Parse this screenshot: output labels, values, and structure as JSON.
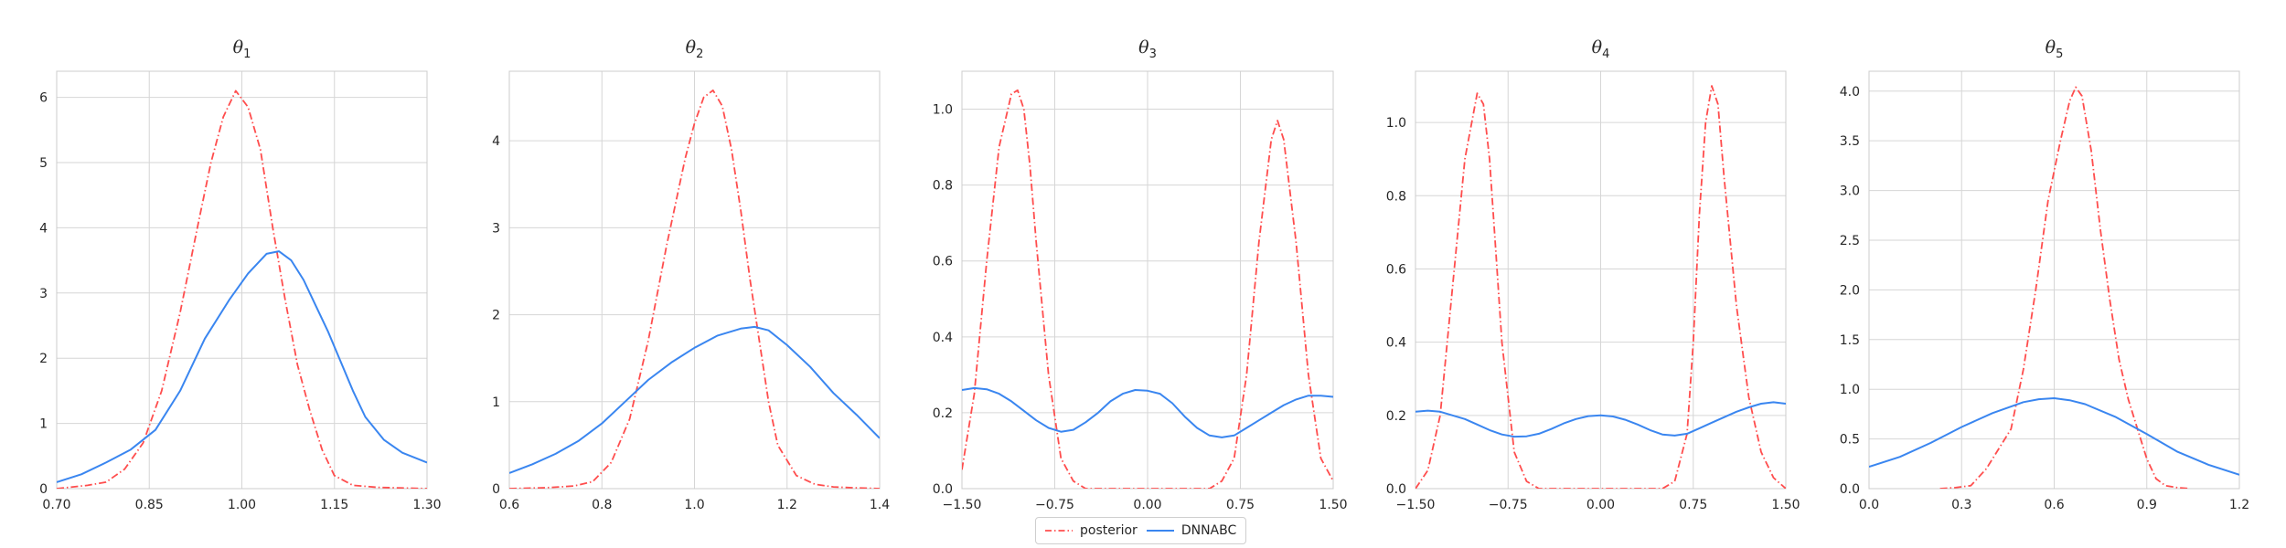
{
  "chart_data": [
    {
      "type": "line",
      "title": "θ1",
      "title_symbol": "θ",
      "title_sub": "1",
      "xlim": [
        0.7,
        1.3
      ],
      "ylim": [
        0,
        6.4
      ],
      "xticks": [
        "0.70",
        "0.85",
        "1.00",
        "1.15",
        "1.30"
      ],
      "yticks": [
        "0",
        "1",
        "2",
        "3",
        "4",
        "5",
        "6"
      ],
      "grid": true,
      "series": [
        {
          "name": "posterior",
          "style": "dashdot",
          "color": "#ff4d4d",
          "x": [
            0.7,
            0.75,
            0.78,
            0.81,
            0.84,
            0.87,
            0.9,
            0.93,
            0.95,
            0.97,
            0.99,
            1.01,
            1.03,
            1.05,
            1.07,
            1.09,
            1.11,
            1.13,
            1.15,
            1.18,
            1.22,
            1.26,
            1.3
          ],
          "y": [
            0.0,
            0.05,
            0.1,
            0.3,
            0.7,
            1.5,
            2.7,
            4.1,
            5.0,
            5.7,
            6.1,
            5.85,
            5.2,
            4.0,
            2.9,
            1.9,
            1.2,
            0.6,
            0.2,
            0.05,
            0.02,
            0.01,
            0.0
          ]
        },
        {
          "name": "DNNABC",
          "style": "solid",
          "color": "#3a86f0",
          "x": [
            0.7,
            0.74,
            0.78,
            0.82,
            0.86,
            0.9,
            0.94,
            0.98,
            1.01,
            1.04,
            1.06,
            1.08,
            1.1,
            1.12,
            1.14,
            1.16,
            1.18,
            1.2,
            1.23,
            1.26,
            1.3
          ],
          "y": [
            0.1,
            0.22,
            0.4,
            0.6,
            0.9,
            1.5,
            2.3,
            2.9,
            3.3,
            3.6,
            3.64,
            3.5,
            3.2,
            2.8,
            2.4,
            1.95,
            1.5,
            1.1,
            0.75,
            0.55,
            0.4
          ]
        }
      ]
    },
    {
      "type": "line",
      "title": "θ2",
      "title_symbol": "θ",
      "title_sub": "2",
      "xlim": [
        0.6,
        1.4
      ],
      "ylim": [
        0,
        4.8
      ],
      "xticks": [
        "0.6",
        "0.8",
        "1.0",
        "1.2",
        "1.4"
      ],
      "yticks": [
        "0",
        "1",
        "2",
        "3",
        "4"
      ],
      "grid": true,
      "series": [
        {
          "name": "posterior",
          "style": "dashdot",
          "color": "#ff4d4d",
          "x": [
            0.6,
            0.68,
            0.74,
            0.78,
            0.82,
            0.86,
            0.9,
            0.94,
            0.98,
            1.0,
            1.02,
            1.04,
            1.06,
            1.08,
            1.1,
            1.12,
            1.14,
            1.16,
            1.18,
            1.22,
            1.26,
            1.3,
            1.34,
            1.4
          ],
          "y": [
            0.0,
            0.01,
            0.03,
            0.08,
            0.3,
            0.8,
            1.7,
            2.8,
            3.8,
            4.2,
            4.5,
            4.58,
            4.4,
            3.9,
            3.2,
            2.4,
            1.7,
            1.0,
            0.5,
            0.15,
            0.05,
            0.02,
            0.01,
            0.0
          ]
        },
        {
          "name": "DNNABC",
          "style": "solid",
          "color": "#3a86f0",
          "x": [
            0.6,
            0.65,
            0.7,
            0.75,
            0.8,
            0.85,
            0.9,
            0.95,
            1.0,
            1.05,
            1.1,
            1.13,
            1.16,
            1.2,
            1.25,
            1.3,
            1.35,
            1.4
          ],
          "y": [
            0.18,
            0.28,
            0.4,
            0.55,
            0.75,
            1.0,
            1.25,
            1.45,
            1.62,
            1.76,
            1.84,
            1.86,
            1.82,
            1.65,
            1.4,
            1.1,
            0.85,
            0.58
          ]
        }
      ]
    },
    {
      "type": "line",
      "title": "θ3",
      "title_symbol": "θ",
      "title_sub": "3",
      "xlim": [
        -1.5,
        1.5
      ],
      "ylim": [
        0,
        1.1
      ],
      "xticks": [
        "−1.50",
        "−0.75",
        "0.00",
        "0.75",
        "1.50"
      ],
      "yticks": [
        "0.0",
        "0.2",
        "0.4",
        "0.6",
        "0.8",
        "1.0"
      ],
      "grid": true,
      "series": [
        {
          "name": "posterior",
          "style": "dashdot",
          "color": "#ff4d4d",
          "x": [
            -1.5,
            -1.4,
            -1.3,
            -1.2,
            -1.1,
            -1.05,
            -1.0,
            -0.95,
            -0.9,
            -0.8,
            -0.7,
            -0.6,
            -0.5,
            -0.3,
            0.0,
            0.3,
            0.5,
            0.6,
            0.7,
            0.8,
            0.9,
            1.0,
            1.05,
            1.1,
            1.2,
            1.3,
            1.4,
            1.5
          ],
          "y": [
            0.05,
            0.25,
            0.6,
            0.9,
            1.04,
            1.05,
            1.0,
            0.85,
            0.65,
            0.3,
            0.08,
            0.02,
            0.0,
            0.0,
            0.0,
            0.0,
            0.0,
            0.02,
            0.08,
            0.3,
            0.65,
            0.92,
            0.97,
            0.92,
            0.65,
            0.3,
            0.08,
            0.02
          ]
        },
        {
          "name": "DNNABC",
          "style": "solid",
          "color": "#3a86f0",
          "x": [
            -1.5,
            -1.4,
            -1.3,
            -1.2,
            -1.1,
            -1.0,
            -0.9,
            -0.8,
            -0.7,
            -0.6,
            -0.5,
            -0.4,
            -0.3,
            -0.2,
            -0.1,
            0.0,
            0.1,
            0.2,
            0.3,
            0.4,
            0.5,
            0.6,
            0.7,
            0.8,
            0.9,
            1.0,
            1.1,
            1.2,
            1.3,
            1.4,
            1.5
          ],
          "y": [
            0.26,
            0.265,
            0.262,
            0.25,
            0.23,
            0.205,
            0.18,
            0.16,
            0.15,
            0.155,
            0.175,
            0.2,
            0.23,
            0.25,
            0.26,
            0.258,
            0.25,
            0.225,
            0.19,
            0.16,
            0.14,
            0.135,
            0.14,
            0.16,
            0.18,
            0.2,
            0.22,
            0.235,
            0.245,
            0.245,
            0.242
          ]
        }
      ]
    },
    {
      "type": "line",
      "title": "θ4",
      "title_symbol": "θ",
      "title_sub": "4",
      "xlim": [
        -1.5,
        1.5
      ],
      "ylim": [
        0,
        1.14
      ],
      "xticks": [
        "−1.50",
        "−0.75",
        "0.00",
        "0.75",
        "1.50"
      ],
      "yticks": [
        "0.0",
        "0.2",
        "0.4",
        "0.6",
        "0.8",
        "1.0"
      ],
      "grid": true,
      "series": [
        {
          "name": "posterior",
          "style": "dashdot",
          "color": "#ff4d4d",
          "x": [
            -1.5,
            -1.4,
            -1.3,
            -1.2,
            -1.1,
            -1.0,
            -0.95,
            -0.9,
            -0.85,
            -0.8,
            -0.7,
            -0.6,
            -0.5,
            -0.3,
            0.0,
            0.3,
            0.5,
            0.6,
            0.7,
            0.75,
            0.8,
            0.85,
            0.9,
            0.95,
            1.0,
            1.1,
            1.2,
            1.3,
            1.4,
            1.5
          ],
          "y": [
            0.0,
            0.05,
            0.2,
            0.55,
            0.9,
            1.08,
            1.05,
            0.9,
            0.65,
            0.4,
            0.1,
            0.02,
            0.0,
            0.0,
            0.0,
            0.0,
            0.0,
            0.02,
            0.15,
            0.4,
            0.75,
            1.0,
            1.1,
            1.05,
            0.85,
            0.5,
            0.25,
            0.1,
            0.03,
            0.0
          ]
        },
        {
          "name": "DNNABC",
          "style": "solid",
          "color": "#3a86f0",
          "x": [
            -1.5,
            -1.4,
            -1.3,
            -1.2,
            -1.1,
            -1.0,
            -0.9,
            -0.8,
            -0.7,
            -0.6,
            -0.5,
            -0.4,
            -0.3,
            -0.2,
            -0.1,
            0.0,
            0.1,
            0.2,
            0.3,
            0.4,
            0.5,
            0.6,
            0.7,
            0.8,
            0.9,
            1.0,
            1.1,
            1.2,
            1.3,
            1.4,
            1.5
          ],
          "y": [
            0.21,
            0.213,
            0.21,
            0.2,
            0.19,
            0.175,
            0.16,
            0.148,
            0.142,
            0.143,
            0.15,
            0.163,
            0.178,
            0.19,
            0.198,
            0.2,
            0.197,
            0.188,
            0.175,
            0.16,
            0.148,
            0.145,
            0.15,
            0.165,
            0.18,
            0.195,
            0.21,
            0.222,
            0.232,
            0.236,
            0.232
          ]
        }
      ]
    },
    {
      "type": "line",
      "title": "θ5",
      "title_symbol": "θ",
      "title_sub": "5",
      "xlim": [
        0.0,
        1.2
      ],
      "ylim": [
        0,
        4.2
      ],
      "xticks": [
        "0.0",
        "0.3",
        "0.6",
        "0.9",
        "1.2"
      ],
      "yticks": [
        "0.0",
        "0.5",
        "1.0",
        "1.5",
        "2.0",
        "2.5",
        "3.0",
        "3.5",
        "4.0"
      ],
      "grid": true,
      "series": [
        {
          "name": "posterior",
          "style": "dashdot",
          "color": "#ff4d4d",
          "x": [
            0.23,
            0.28,
            0.33,
            0.38,
            0.42,
            0.46,
            0.5,
            0.54,
            0.58,
            0.62,
            0.65,
            0.67,
            0.69,
            0.72,
            0.75,
            0.78,
            0.81,
            0.84,
            0.87,
            0.9,
            0.93,
            0.96,
            1.0,
            1.04
          ],
          "y": [
            0.0,
            0.01,
            0.03,
            0.2,
            0.4,
            0.6,
            1.2,
            2.0,
            2.9,
            3.5,
            3.9,
            4.04,
            3.95,
            3.4,
            2.6,
            1.9,
            1.3,
            0.9,
            0.6,
            0.3,
            0.1,
            0.03,
            0.01,
            0.0
          ]
        },
        {
          "name": "DNNABC",
          "style": "solid",
          "color": "#3a86f0",
          "x": [
            0.0,
            0.1,
            0.2,
            0.3,
            0.4,
            0.5,
            0.55,
            0.6,
            0.65,
            0.7,
            0.8,
            0.9,
            1.0,
            1.1,
            1.2
          ],
          "y": [
            0.22,
            0.32,
            0.46,
            0.62,
            0.76,
            0.87,
            0.9,
            0.91,
            0.89,
            0.85,
            0.72,
            0.55,
            0.37,
            0.24,
            0.14
          ]
        }
      ]
    }
  ],
  "legend": {
    "placement": "bottom-center",
    "items": [
      {
        "label": "posterior",
        "color": "#ff4d4d",
        "style": "dashdot"
      },
      {
        "label": "DNNABC",
        "color": "#3a86f0",
        "style": "solid"
      }
    ]
  }
}
